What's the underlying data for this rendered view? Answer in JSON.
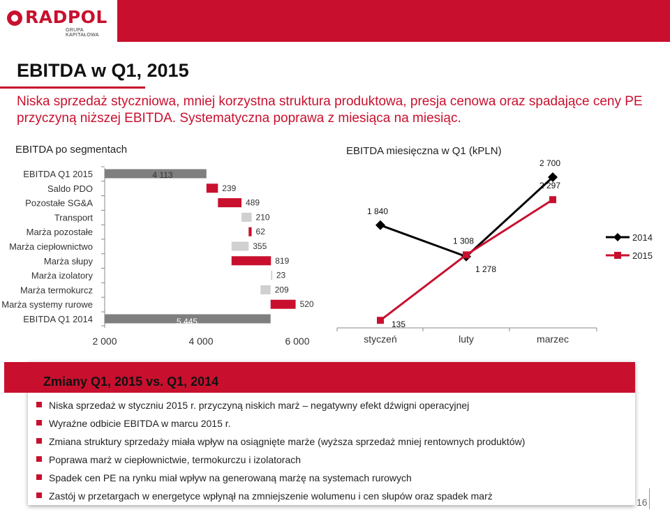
{
  "header": {
    "logo_text": "RADPOL",
    "logo_sub": "GRUPA KAPITAŁOWA"
  },
  "title": "EBITDA w Q1, 2015",
  "subtitle": "Niska sprzedaż styczniowa, mniej korzystna struktura produktowa, presja cenowa oraz spadające ceny PE przyczyną niższej EBITDA. Systematyczna poprawa z miesiąca na miesiąc.",
  "colors": {
    "red": "#c8102e",
    "grey": "#d0d0d0",
    "dark_grey": "#7f7f7f",
    "black": "#000000"
  },
  "chart_data": [
    {
      "type": "bar",
      "orientation": "horizontal-waterfall",
      "title": "EBITDA po segmentach",
      "categories": [
        "EBITDA Q1 2015",
        "Saldo PDO",
        "Pozostałe SG&A",
        "Transport",
        "Marża pozostałe",
        "Marża ciepłownictwo",
        "Marża słupy",
        "Marża izolatory",
        "Marża termokurcz",
        "Marża systemy rurowe",
        "EBITDA Q1 2014"
      ],
      "bars": [
        {
          "category": "EBITDA Q1 2015",
          "start": 0,
          "end": 4113,
          "label": "4 113",
          "color": "dark_grey"
        },
        {
          "category": "Saldo PDO",
          "start": 4113,
          "end": 4352,
          "label": "239",
          "color": "red"
        },
        {
          "category": "Pozostałe SG&A",
          "start": 4352,
          "end": 4841,
          "label": "489",
          "color": "red"
        },
        {
          "category": "Transport",
          "start": 4841,
          "end": 5051,
          "label": "210",
          "color": "grey"
        },
        {
          "category": "Marża pozostałe",
          "start": 4989,
          "end": 5051,
          "label": "62",
          "color": "red"
        },
        {
          "category": "Marża ciepłownictwo",
          "start": 4634,
          "end": 4989,
          "label": "355",
          "color": "grey"
        },
        {
          "category": "Marża słupy",
          "start": 4634,
          "end": 5453,
          "label": "819",
          "color": "red"
        },
        {
          "category": "Marża izolatory",
          "start": 5453,
          "end": 5476,
          "label": "23",
          "color": "grey"
        },
        {
          "category": "Marża termokurcz",
          "start": 5236,
          "end": 5445,
          "label": "209",
          "color": "grey"
        },
        {
          "category": "Marża systemy rurowe",
          "start": 5445,
          "end": 5965,
          "label": "520",
          "color": "red"
        },
        {
          "category": "EBITDA Q1 2014",
          "start": 0,
          "end": 5445,
          "label": "5 445",
          "color": "dark_grey"
        }
      ],
      "xlim": [
        2000,
        6000
      ],
      "x_ticks": [
        "2 000",
        "4 000",
        "6 000"
      ],
      "x_tick_values": [
        2000,
        4000,
        6000
      ]
    },
    {
      "type": "line",
      "title": "EBITDA miesięczna w Q1 (kPLN)",
      "categories": [
        "styczeń",
        "luty",
        "marzec"
      ],
      "series": [
        {
          "name": "2014",
          "values": [
            1840,
            1278,
            2700
          ],
          "labels": [
            "1 840",
            "1 278",
            "2 700"
          ],
          "color": "black",
          "marker": "diamond"
        },
        {
          "name": "2015",
          "values": [
            135,
            1308,
            2297
          ],
          "labels": [
            "135",
            "1 308",
            "2 297"
          ],
          "color": "red",
          "marker": "square"
        }
      ],
      "ylim": [
        0,
        3000
      ],
      "legend": "right"
    }
  ],
  "panel": {
    "title": "Zmiany Q1, 2015 vs. Q1, 2014",
    "bullets": [
      "Niska sprzedaż w styczniu 2015 r. przyczyną niskich  marż – negatywny efekt dźwigni operacyjnej",
      "Wyraźne odbicie EBITDA w marcu 2015 r.",
      "Zmiana struktury sprzedaży miała wpływ na osiągnięte marże (wyższa sprzedaż mniej rentownych produktów)",
      "Poprawa marż w ciepłownictwie, termokurczu i izolatorach",
      "Spadek cen PE na rynku miał wpływ na generowaną  marżę na systemach rurowych",
      "Zastój w przetargach w energetyce wpłynął na zmniejszenie wolumenu i cen słupów oraz spadek marż"
    ]
  },
  "page_number": "16"
}
